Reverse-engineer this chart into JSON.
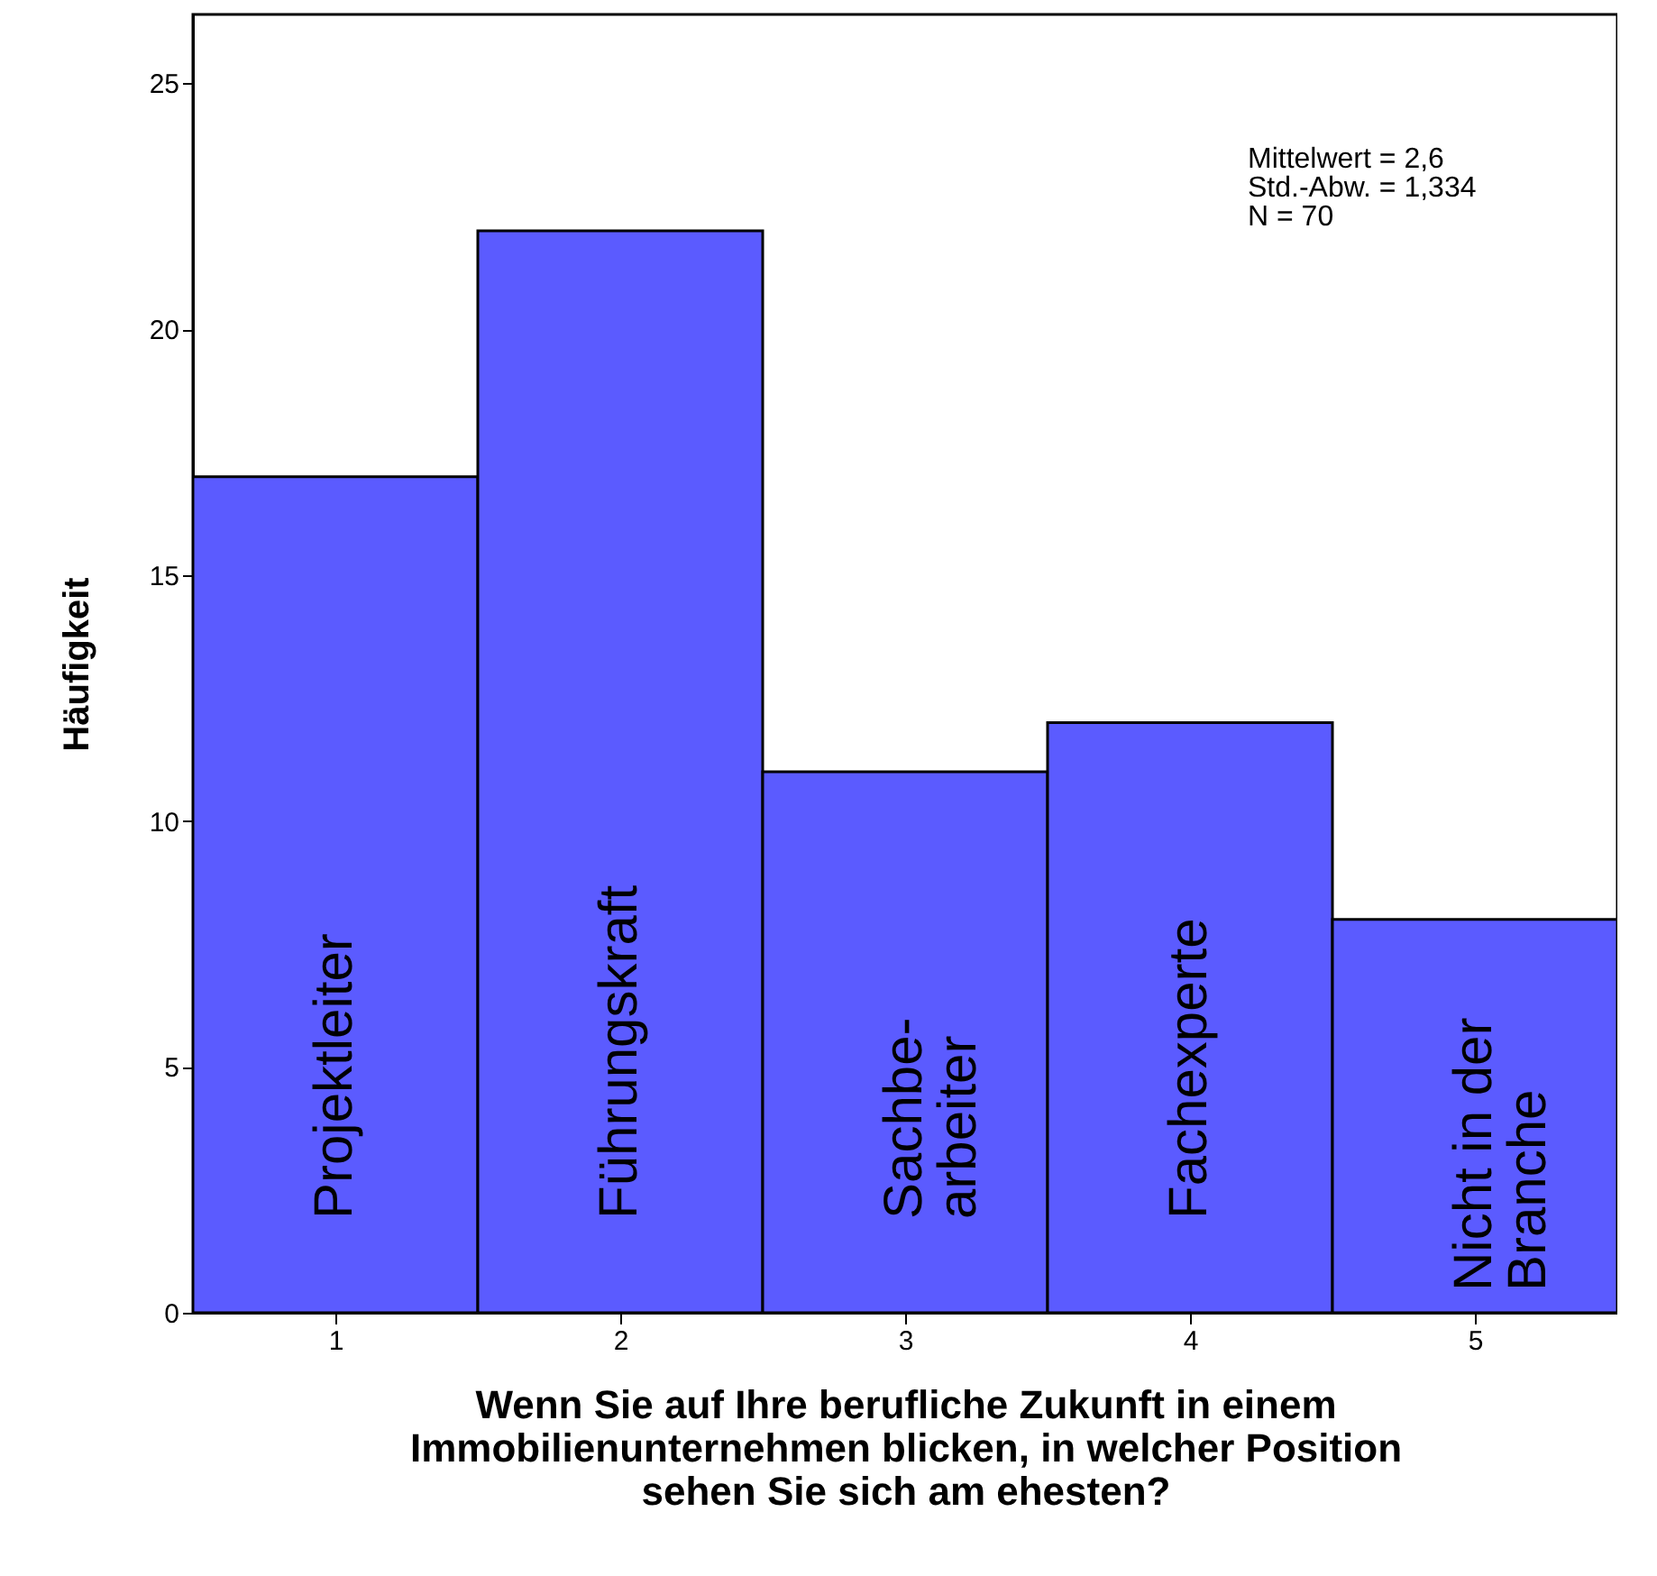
{
  "chart_data": {
    "type": "histogram",
    "xlabel": "Wenn Sie auf Ihre berufliche Zukunft in einem\nImmobilienunternehmen blicken, in welcher Position\nsehen Sie sich am ehesten?",
    "ylabel": "Häufigkeit",
    "bins": [
      0.5,
      1.5,
      2.5,
      3.5,
      4.5,
      5.5
    ],
    "values": [
      17,
      22,
      11,
      12,
      8
    ],
    "color": "#5b5bff",
    "xlim": [
      0.5,
      5.5
    ],
    "xticks": [
      1,
      2,
      3,
      4,
      5
    ],
    "ylim": [
      0,
      26.4
    ],
    "yticks": [
      0,
      5,
      10,
      15,
      20,
      25
    ],
    "grid": false,
    "annotations": [
      "Projektleiter",
      "Führungskraft",
      "Sachbe-\narbeiter",
      "Fachexperte",
      "Nicht in der\nBranche",
      "Mittelwert = 2,6\nStd.-Abw. = 1,334\nN = 70"
    ]
  }
}
